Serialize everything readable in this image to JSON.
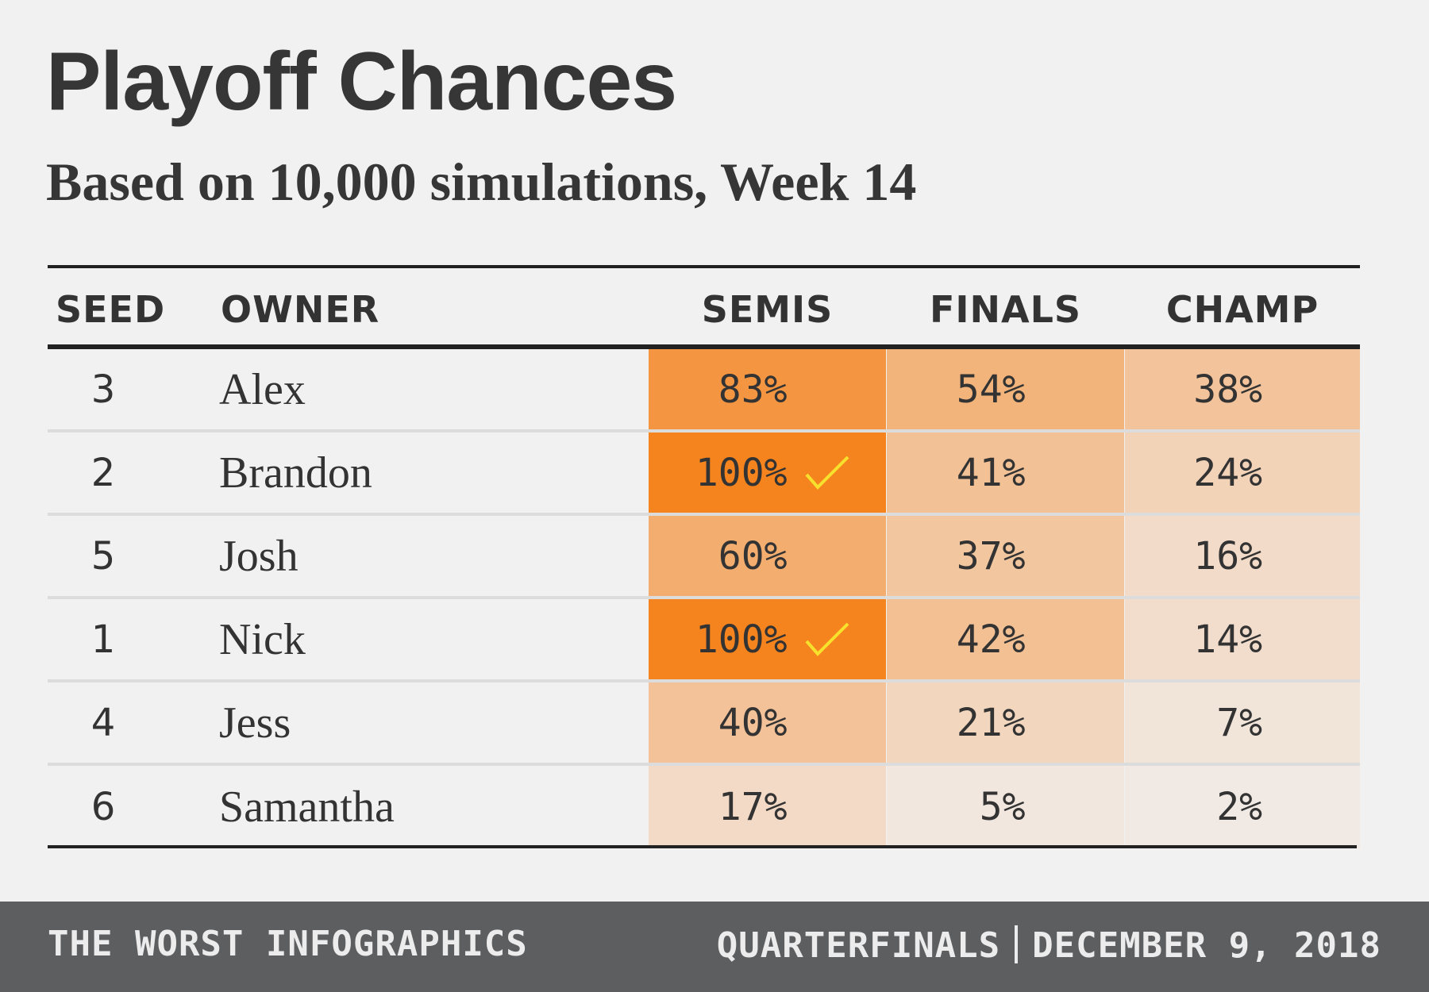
{
  "title": "Playoff Chances",
  "subtitle": "Based on 10,000 simulations, Week 14",
  "colors": {
    "accent": "#f5841f",
    "check": "#f7e12c",
    "cell_min": "#f1ece8"
  },
  "chart_data": {
    "type": "table",
    "title": "Playoff Chances",
    "subtitle": "Based on 10,000 simulations, Week 14",
    "columns": [
      "SEED",
      "OWNER",
      "SEMIS",
      "FINALS",
      "CHAMP"
    ],
    "rows": [
      {
        "seed": "3",
        "owner": "Alex",
        "semis": 83,
        "finals": 54,
        "champ": 38,
        "semis_clinched": false
      },
      {
        "seed": "2",
        "owner": "Brandon",
        "semis": 100,
        "finals": 41,
        "champ": 24,
        "semis_clinched": true
      },
      {
        "seed": "5",
        "owner": "Josh",
        "semis": 60,
        "finals": 37,
        "champ": 16,
        "semis_clinched": false
      },
      {
        "seed": "1",
        "owner": "Nick",
        "semis": 100,
        "finals": 42,
        "champ": 14,
        "semis_clinched": true
      },
      {
        "seed": "4",
        "owner": "Jess",
        "semis": 40,
        "finals": 21,
        "champ": 7,
        "semis_clinched": false
      },
      {
        "seed": "6",
        "owner": "Samantha",
        "semis": 17,
        "finals": 5,
        "champ": 2,
        "semis_clinched": false
      }
    ]
  },
  "footer": {
    "left": "THE WORST INFOGRAPHICS",
    "right_round": "QUARTERFINALS",
    "right_date": "DECEMBER 9, 2018"
  }
}
